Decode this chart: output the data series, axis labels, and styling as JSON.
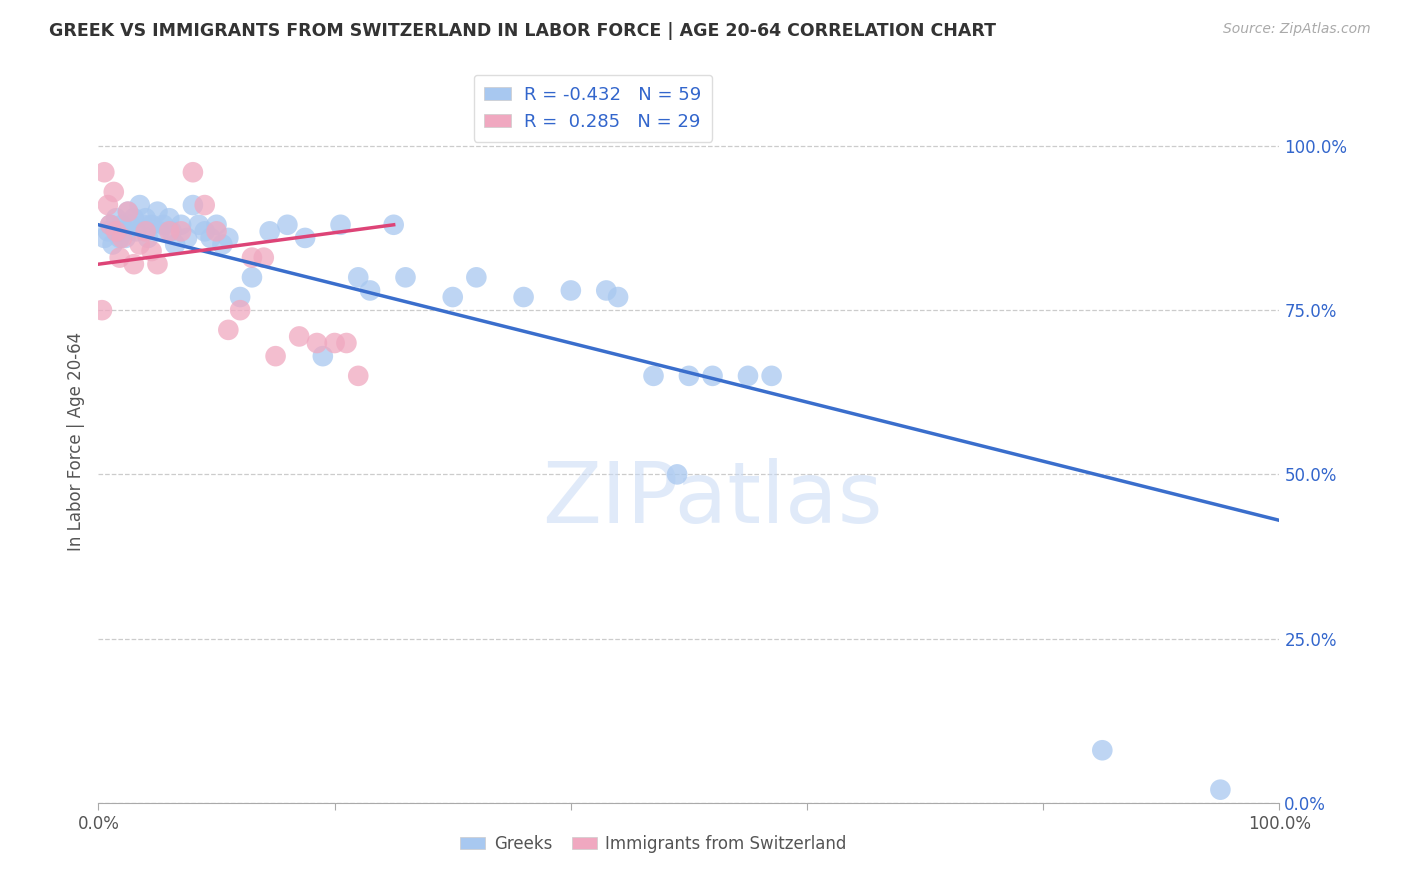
{
  "title": "GREEK VS IMMIGRANTS FROM SWITZERLAND IN LABOR FORCE | AGE 20-64 CORRELATION CHART",
  "source": "Source: ZipAtlas.com",
  "ylabel": "In Labor Force | Age 20-64",
  "xlim": [
    0,
    100
  ],
  "ylim": [
    0,
    110
  ],
  "ytick_labels": [
    "0.0%",
    "25.0%",
    "50.0%",
    "75.0%",
    "100.0%"
  ],
  "ytick_vals": [
    0,
    25,
    50,
    75,
    100
  ],
  "xtick_labels": [
    "0.0%",
    "100.0%"
  ],
  "xtick_vals": [
    0,
    100
  ],
  "blue_R": -0.432,
  "blue_N": 59,
  "pink_R": 0.285,
  "pink_N": 29,
  "blue_color": "#a8c8f0",
  "pink_color": "#f0a8c0",
  "blue_line_color": "#3a6ecc",
  "pink_line_color": "#dd4477",
  "watermark": "ZIPatlas",
  "blue_label": "Greeks",
  "pink_label": "Immigrants from Switzerland",
  "blue_line_x0": 0,
  "blue_line_y0": 88,
  "blue_line_x1": 100,
  "blue_line_y1": 43,
  "pink_line_x0": 0,
  "pink_line_y0": 82,
  "pink_line_x1": 25,
  "pink_line_y1": 88,
  "blue_points_x": [
    0.5,
    0.8,
    1.0,
    1.2,
    1.5,
    1.7,
    1.8,
    2.0,
    2.2,
    2.3,
    2.5,
    2.7,
    3.0,
    3.2,
    3.5,
    3.8,
    4.0,
    4.2,
    4.5,
    5.0,
    5.2,
    5.5,
    6.0,
    6.2,
    6.5,
    7.0,
    7.5,
    8.0,
    8.5,
    9.0,
    9.5,
    10.0,
    10.5,
    11.0,
    12.0,
    13.0,
    14.5,
    16.0,
    17.5,
    19.0,
    20.5,
    22.0,
    23.0,
    25.0,
    26.0,
    30.0,
    32.0,
    36.0,
    40.0,
    43.0,
    44.0,
    47.0,
    49.0,
    50.0,
    52.0,
    55.0,
    57.0,
    85.0,
    95.0
  ],
  "blue_points_y": [
    86,
    87,
    88,
    85,
    89,
    87,
    86,
    88,
    87,
    86,
    90,
    88,
    89,
    87,
    91,
    88,
    89,
    86,
    88,
    90,
    87,
    88,
    89,
    87,
    85,
    88,
    86,
    91,
    88,
    87,
    86,
    88,
    85,
    86,
    77,
    80,
    87,
    88,
    86,
    68,
    88,
    80,
    78,
    88,
    80,
    77,
    80,
    77,
    78,
    78,
    77,
    65,
    50,
    65,
    65,
    65,
    65,
    8,
    2
  ],
  "pink_points_x": [
    0.5,
    0.8,
    1.0,
    1.3,
    1.5,
    1.8,
    2.0,
    2.5,
    3.0,
    3.5,
    4.0,
    4.5,
    5.0,
    6.0,
    7.0,
    8.0,
    9.0,
    10.0,
    11.0,
    12.0,
    13.0,
    14.0,
    15.0,
    17.0,
    18.5,
    20.0,
    21.0,
    22.0,
    0.3
  ],
  "pink_points_y": [
    96,
    91,
    88,
    93,
    87,
    83,
    86,
    90,
    82,
    85,
    87,
    84,
    82,
    87,
    87,
    96,
    91,
    87,
    72,
    75,
    83,
    83,
    68,
    71,
    70,
    70,
    70,
    65,
    75
  ]
}
